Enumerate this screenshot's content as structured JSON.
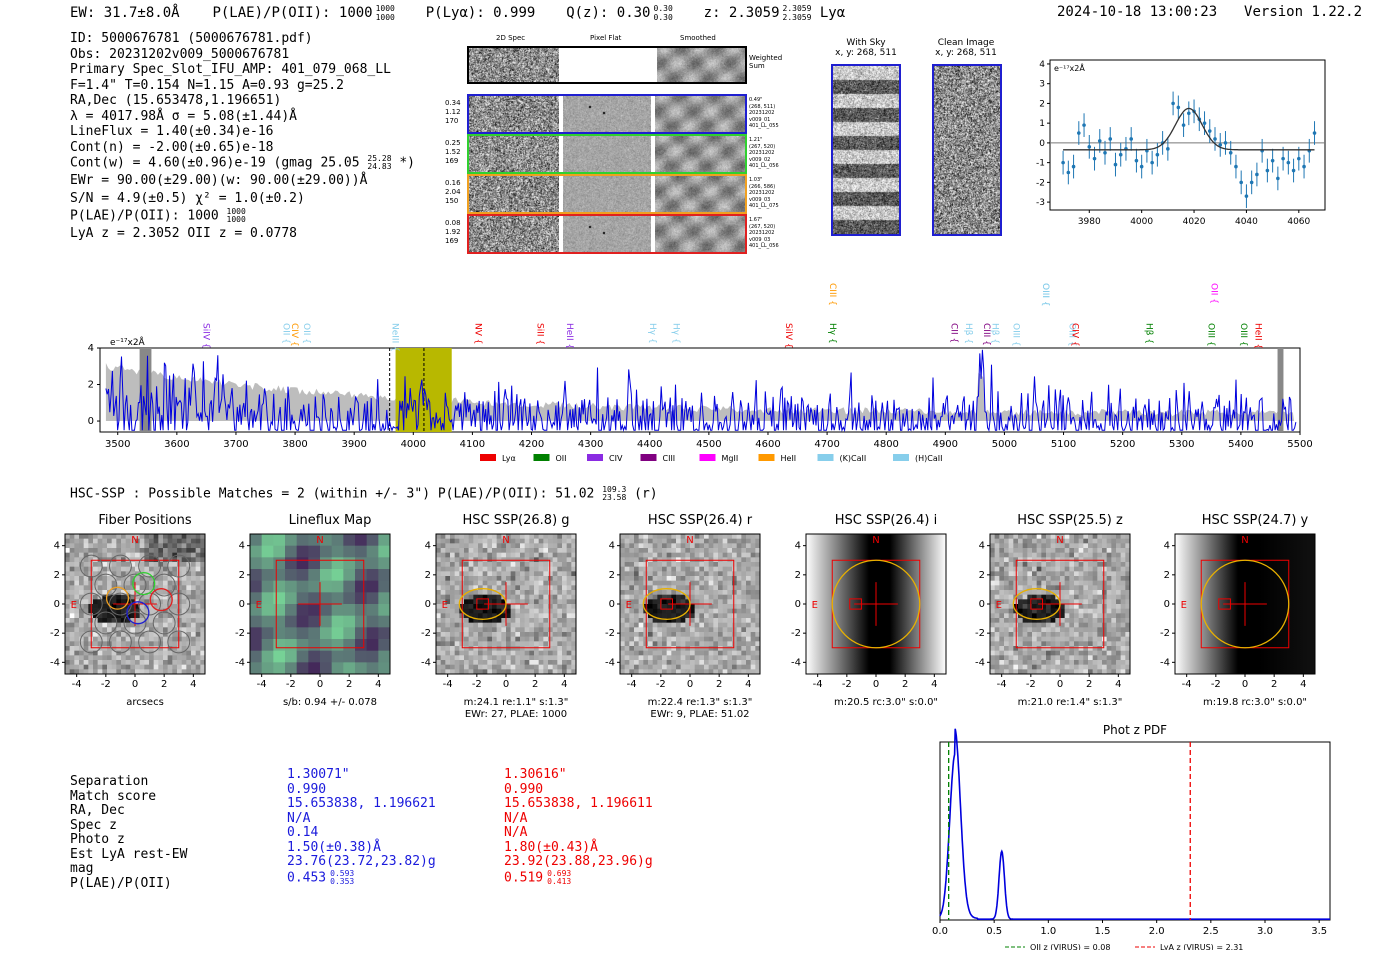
{
  "header": {
    "ew": "EW: 31.7±8.0Å",
    "plae_label": "P(LAE)/P(OII): 1000",
    "plae_hi": "1000",
    "plae_lo": "1000",
    "plya": "P(Lyα): 0.999",
    "qz_label": "Q(z): 0.30",
    "qz_hi": "0.30",
    "qz_lo": "0.30",
    "z_label": "z: 2.3059",
    "z_hi": "2.3059",
    "z_lo": "2.3059",
    "z_line": "Lyα",
    "timestamp": "2024-10-18 13:00:23",
    "version": "Version 1.22.2"
  },
  "info": {
    "id": "ID: 5000676781 (5000676781.pdf)",
    "obs": "Obs: 20231202v009_5000676781",
    "primary": "Primary Spec_Slot_IFU_AMP: 401_079_068_LL",
    "params": "F=1.4\"  T=0.154  N=1.15  A=0.93  g=25.2",
    "radec": "RA,Dec (15.653478,1.196651)",
    "wave": "λ = 4017.98Å   σ = 5.08(±1.44)Å",
    "lineflux": "LineFlux = 1.40(±0.34)e-16",
    "contn": "Cont(n) = -2.00(±0.65)e-18",
    "contw": "Cont(w) = 4.60(±0.96)e-19 (gmag 25.05",
    "contw_hi": "25.28",
    "contw_lo": "24.83",
    "contw_end": "*)",
    "ewr": "EWr = 90.00(±29.00)(w: 90.00(±29.00))Å",
    "sn": "S/N = 4.9(±0.5)  χ² = 1.0(±0.2)",
    "plae": "P(LAE)/P(OII): 1000",
    "plae_hi": "1000",
    "plae_lo": "1000",
    "lyaz": "LyA z = 2.3052  OII z = 0.0778"
  },
  "cutouts": {
    "col_headers": [
      "2D Spec",
      "Pixel Flat",
      "Smoothed"
    ],
    "weighted_sum": "Weighted Sum",
    "rows": [
      {
        "color": "#1f1fd0",
        "left": [
          "0.34",
          "1.12",
          "170"
        ],
        "right": [
          "0.49\"",
          "(268, 511)",
          "20231202",
          "v009_01",
          "401_LL_055"
        ]
      },
      {
        "color": "#30d030",
        "left": [
          "0.25",
          "1.52",
          "169"
        ],
        "right": [
          "1.21\"",
          "(267, 520)",
          "20231202",
          "v009_02",
          "401_LL_056"
        ]
      },
      {
        "color": "#f0a020",
        "left": [
          "0.16",
          "2.04",
          "150"
        ],
        "right": [
          "1.03\"",
          "(266, 586)",
          "20231202",
          "v009_03",
          "401_LL_075"
        ]
      },
      {
        "color": "#e02020",
        "left": [
          "0.08",
          "1.92",
          "169"
        ],
        "right": [
          "1.67\"",
          "(267, 520)",
          "20231202",
          "v009_03",
          "401_LL_056"
        ]
      }
    ]
  },
  "sky": {
    "with_sky": "With Sky",
    "with_sky_xy": "x, y: 268, 511",
    "clean": "Clean Image",
    "clean_xy": "x, y: 268, 511"
  },
  "legend_colors": {
    "Lyα": "#ee0000",
    "OII": "#008000",
    "CIV": "#8a2be2",
    "CIII": "#800080",
    "MgII": "#ff00ff",
    "HeII": "#ff9900",
    "(K)CaII": "#87ceeb",
    "(H)CaII": "#87ceeb"
  },
  "line_labels": [
    {
      "name": "SiIV",
      "wave": 3640,
      "color": "#8a2be2"
    },
    {
      "name": "OII",
      "wave": 3775,
      "color": "#87ceeb"
    },
    {
      "name": "CIV",
      "wave": 3790,
      "color": "#ff9900"
    },
    {
      "name": "OII",
      "wave": 3810,
      "color": "#87ceeb"
    },
    {
      "name": "NeIII",
      "wave": 3960,
      "color": "#87ceeb"
    },
    {
      "name": "NV",
      "wave": 4100,
      "color": "#ee0000"
    },
    {
      "name": "SiII",
      "wave": 4205,
      "color": "#ee0000"
    },
    {
      "name": "HeII",
      "wave": 4255,
      "color": "#8a2be2"
    },
    {
      "name": "Hγ",
      "wave": 4395,
      "color": "#87ceeb"
    },
    {
      "name": "Hγ",
      "wave": 4435,
      "color": "#87ceeb"
    },
    {
      "name": "SiIV",
      "wave": 4625,
      "color": "#ee0000"
    },
    {
      "name": "Hγ",
      "wave": 4700,
      "color": "#008000"
    },
    {
      "name": "CIII",
      "wave": 4700,
      "color": "#ff9900"
    },
    {
      "name": "CII",
      "wave": 4905,
      "color": "#800080"
    },
    {
      "name": "Hβ",
      "wave": 4930,
      "color": "#87ceeb"
    },
    {
      "name": "CIII",
      "wave": 4960,
      "color": "#800080"
    },
    {
      "name": "Hβ",
      "wave": 4975,
      "color": "#87ceeb"
    },
    {
      "name": "OIII",
      "wave": 5010,
      "color": "#87ceeb"
    },
    {
      "name": "OIII",
      "wave": 5060,
      "color": "#87ceeb"
    },
    {
      "name": "OIII",
      "wave": 5060,
      "color": "#87ceeb"
    },
    {
      "name": "OIII",
      "wave": 5105,
      "color": "#87ceeb"
    },
    {
      "name": "CIV",
      "wave": 5110,
      "color": "#ee0000"
    },
    {
      "name": "Hβ",
      "wave": 5235,
      "color": "#008000"
    },
    {
      "name": "OIII",
      "wave": 5340,
      "color": "#008000"
    },
    {
      "name": "OII",
      "wave": 5345,
      "color": "#ff00ff"
    },
    {
      "name": "OIII",
      "wave": 5395,
      "color": "#008000"
    },
    {
      "name": "HeII",
      "wave": 5420,
      "color": "#ee0000"
    }
  ],
  "hsc": {
    "summary": "HSC-SSP : Possible Matches = 2 (within +/- 3\")  P(LAE)/P(OII): 51.02",
    "summary_hi": "109.3",
    "summary_lo": "23.58",
    "summary_end": "(r)",
    "panels": [
      {
        "title": "Fiber Positions",
        "cap1": "arcsecs",
        "cap2": ""
      },
      {
        "title": "Lineflux Map",
        "cap1": "s/b: 0.94 +/- 0.078",
        "cap2": ""
      },
      {
        "title": "HSC SSP(26.8) g",
        "cap1": "m:24.1  re:1.1\"  s:1.3\"",
        "cap2": "EWr: 27, PLAE: 1000"
      },
      {
        "title": "HSC SSP(26.4) r",
        "cap1": "m:22.4  re:1.3\"  s:1.3\"",
        "cap2": "EWr: 9, PLAE: 51.02"
      },
      {
        "title": "HSC SSP(26.4) i",
        "cap1": "m:20.5 rc:3.0\"  s:0.0\"",
        "cap2": ""
      },
      {
        "title": "HSC SSP(25.5) z",
        "cap1": "m:21.0  re:1.4\"  s:1.3\"",
        "cap2": ""
      },
      {
        "title": "HSC SSP(24.7) y",
        "cap1": "m:19.8 rc:3.0\"  s:0.0\"",
        "cap2": ""
      }
    ],
    "north": "N",
    "east": "E"
  },
  "compare": {
    "labels": [
      "Separation",
      "Match score",
      "RA, Dec",
      "Spec z",
      "Photo z",
      "Est LyA rest-EW",
      "mag",
      "P(LAE)/P(OII)"
    ],
    "blue": [
      "1.30071\"",
      "0.990",
      "15.653838, 1.196621",
      "N/A",
      "0.14",
      "1.50(±0.38)Å",
      "23.76(23.72,23.82)g",
      "0.453"
    ],
    "blue_plae_hi": "0.593",
    "blue_plae_lo": "0.353",
    "red": [
      "1.30616\"",
      "0.990",
      "15.653838, 1.196611",
      "N/A",
      "N/A",
      "1.80(±0.43)Å",
      "23.92(23.88,23.96)g",
      "0.519"
    ],
    "red_plae_hi": "0.693",
    "red_plae_lo": "0.413",
    "blue_color": "#1a1adc",
    "red_color": "#ee0000"
  },
  "chart_data": [
    {
      "type": "scatter",
      "title": "",
      "ylabel": "e⁻¹⁷x2Å",
      "xlim": [
        3965,
        4070
      ],
      "ylim": [
        -3.4,
        4.2
      ],
      "xticks": [
        3980,
        4000,
        4020,
        4040,
        4060
      ],
      "yticks": [
        -3,
        -2,
        -1,
        0,
        1,
        2,
        3,
        4
      ],
      "x": [
        3970,
        3972,
        3974,
        3976,
        3978,
        3980,
        3982,
        3984,
        3986,
        3988,
        3990,
        3992,
        3994,
        3996,
        3998,
        4000,
        4002,
        4004,
        4006,
        4008,
        4010,
        4012,
        4014,
        4016,
        4018,
        4020,
        4022,
        4024,
        4026,
        4028,
        4030,
        4032,
        4034,
        4036,
        4038,
        4040,
        4042,
        4044,
        4046,
        4048,
        4050,
        4052,
        4054,
        4056,
        4058,
        4060,
        4062,
        4064,
        4066
      ],
      "y": [
        -1.0,
        -1.5,
        -1.2,
        0.5,
        0.9,
        -0.2,
        -0.8,
        0.1,
        -0.5,
        0.2,
        -1.1,
        -0.6,
        -0.3,
        0.2,
        -0.9,
        -1.2,
        -0.4,
        -1.0,
        -0.6,
        0.0,
        -0.3,
        2.0,
        1.8,
        0.9,
        1.5,
        1.6,
        1.2,
        1.0,
        0.6,
        0.2,
        -0.1,
        0.0,
        -0.5,
        -1.2,
        -2.0,
        -2.7,
        -2.0,
        -1.6,
        -0.4,
        -1.4,
        -0.9,
        -1.8,
        -0.8,
        -1.0,
        -1.4,
        -0.8,
        -1.2,
        -0.4,
        0.5
      ],
      "err": [
        0.6,
        0.6,
        0.6,
        0.6,
        0.6,
        0.6,
        0.6,
        0.6,
        0.6,
        0.6,
        0.6,
        0.6,
        0.6,
        0.6,
        0.6,
        0.6,
        0.6,
        0.6,
        0.6,
        0.6,
        0.6,
        0.6,
        0.6,
        0.6,
        0.6,
        0.6,
        0.6,
        0.6,
        0.6,
        0.6,
        0.6,
        0.6,
        0.6,
        0.6,
        0.6,
        0.6,
        0.6,
        0.6,
        0.6,
        0.6,
        0.6,
        0.6,
        0.6,
        0.6,
        0.6,
        0.6,
        0.6,
        0.6,
        0.6
      ],
      "fit": {
        "center": 4018,
        "sigma": 5.08,
        "amp": 2.1,
        "baseline": -0.35
      }
    },
    {
      "type": "line",
      "title": "",
      "ylabel": "e⁻¹⁷x2Å",
      "xlim": [
        3470,
        5500
      ],
      "ylim": [
        -0.6,
        4.0
      ],
      "xticks": [
        3500,
        3600,
        3700,
        3800,
        3900,
        4000,
        4100,
        4200,
        4300,
        4400,
        4500,
        4600,
        4700,
        4800,
        4900,
        5000,
        5100,
        5200,
        5300,
        5400,
        5500
      ],
      "yticks": [
        0,
        2,
        4
      ],
      "highlight_range": [
        3970,
        4065
      ],
      "marker_lines": [
        3960,
        4018
      ],
      "legend": [
        "Lyα",
        "OII",
        "CIV",
        "CIII",
        "MgII",
        "HeII",
        "(K)CaII",
        "(H)CaII"
      ]
    },
    {
      "type": "line",
      "title": "Phot z PDF",
      "xlim": [
        0.0,
        3.6
      ],
      "xticks": [
        0.0,
        0.5,
        1.0,
        1.5,
        2.0,
        2.5,
        3.0,
        3.5
      ],
      "oii_z": 0.08,
      "lya_z": 2.31,
      "legend": [
        "OII z (VIRUS) = 0.08",
        "LyA z (VIRUS) = 2.31"
      ],
      "peaks": [
        {
          "z": 0.14,
          "height": 1.0,
          "width": 0.05
        },
        {
          "z": 0.57,
          "height": 0.41,
          "width": 0.025
        }
      ]
    }
  ]
}
